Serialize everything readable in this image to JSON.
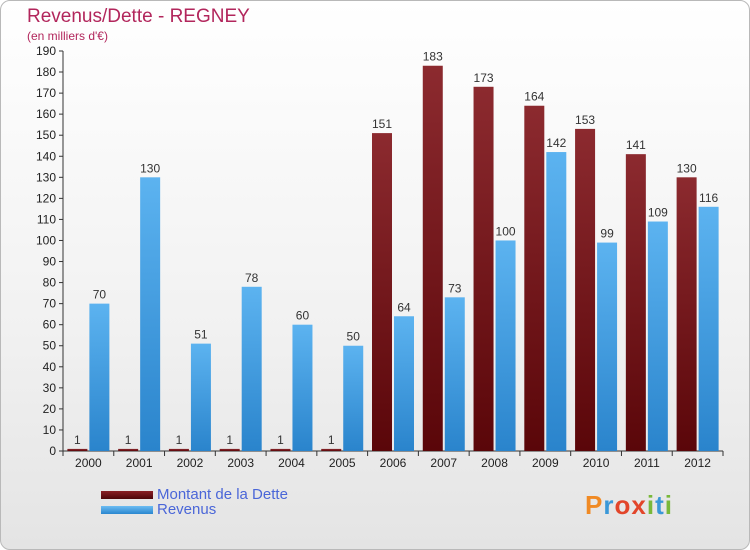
{
  "title": "Revenus/Dette - REGNEY",
  "subtitle": "(en milliers d'€)",
  "chart_data": {
    "type": "bar",
    "title": "Revenus/Dette - REGNEY",
    "subtitle": "(en milliers d'€)",
    "categories": [
      "2000",
      "2001",
      "2002",
      "2003",
      "2004",
      "2005",
      "2006",
      "2007",
      "2008",
      "2009",
      "2010",
      "2011",
      "2012"
    ],
    "series": [
      {
        "name": "Montant de la Dette",
        "color": "#7a1a1e",
        "values": [
          1,
          1,
          1,
          1,
          1,
          1,
          151,
          183,
          173,
          164,
          153,
          141,
          130
        ]
      },
      {
        "name": "Revenus",
        "color": "#3f9fe6",
        "values": [
          70,
          130,
          51,
          78,
          60,
          50,
          64,
          73,
          100,
          142,
          99,
          109,
          116
        ]
      }
    ],
    "ylim": [
      0,
      190
    ],
    "y_ticks": [
      0,
      10,
      20,
      30,
      40,
      50,
      60,
      70,
      80,
      90,
      100,
      110,
      120,
      130,
      140,
      150,
      160,
      170,
      180,
      190
    ],
    "grid": false,
    "legend_position": "bottom-left",
    "data_labels": true
  },
  "legend": {
    "items": [
      {
        "label": "Montant de la Dette",
        "color": "#6b0f12"
      },
      {
        "label": "Revenus",
        "color": "#3f9fe6"
      }
    ]
  },
  "logo": {
    "letters": [
      "P",
      "r",
      "o",
      "x",
      "i",
      "t",
      "i"
    ],
    "colors": [
      "#f08a24",
      "#3a98d8",
      "#e2452a",
      "#e2452a",
      "#79b83a",
      "#3a98d8",
      "#79b83a"
    ]
  }
}
